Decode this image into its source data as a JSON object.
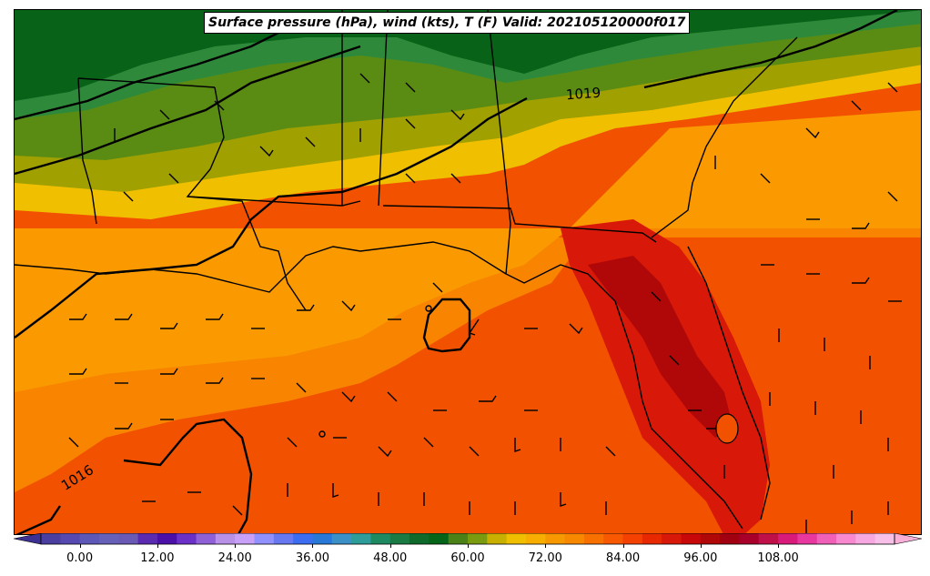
{
  "title": "Surface pressure (hPa), wind (kts), T (F) Valid: 202105120000f017",
  "isobar_labels": [
    {
      "value": "1019"
    },
    {
      "value": "1016"
    }
  ],
  "colorbar": {
    "min": -6,
    "max": 126,
    "step": 3,
    "tick_labels": [
      "0.00",
      "12.00",
      "24.00",
      "36.00",
      "48.00",
      "60.00",
      "72.00",
      "84.00",
      "96.00",
      "108.00"
    ],
    "tick_values": [
      0,
      12,
      24,
      36,
      48,
      60,
      72,
      84,
      96,
      108
    ],
    "colors": [
      "#4a3fa0",
      "#5548b0",
      "#5d58b8",
      "#6660b8",
      "#6a5ab5",
      "#5a2ab0",
      "#4a10a8",
      "#6a30c8",
      "#9060d8",
      "#b890e8",
      "#c8a0f8",
      "#9090ff",
      "#6878f0",
      "#3c6cf0",
      "#2878d8",
      "#3c90c8",
      "#2e9c98",
      "#1e8a62",
      "#1a7a44",
      "#0e6a2a",
      "#046418",
      "#4a8218",
      "#7a9a10",
      "#c8b000",
      "#f0c000",
      "#f8ae00",
      "#f89800",
      "#f88800",
      "#f87000",
      "#f85800",
      "#f44000",
      "#e82800",
      "#d81808",
      "#c80808",
      "#b00808",
      "#a00010",
      "#a8002a",
      "#c0104a",
      "#d81a7a",
      "#e838a0",
      "#f060b8",
      "#f888d0",
      "#f8a8e0",
      "#f8c0e8"
    ],
    "over_color": "#f8b0d8",
    "under_color": "#3c3090"
  },
  "region_temperature_colors": {
    "cold_north": "#086218",
    "cool": "#2e8a3a",
    "mild": "#5a8c14",
    "olive": "#a0a000",
    "warm": "#f0c000",
    "orange_light": "#fa9a00",
    "orange": "#f88400",
    "orange_red": "#f25200",
    "red": "#d81808",
    "dark_red": "#b00808",
    "boundaries": "#000000"
  }
}
